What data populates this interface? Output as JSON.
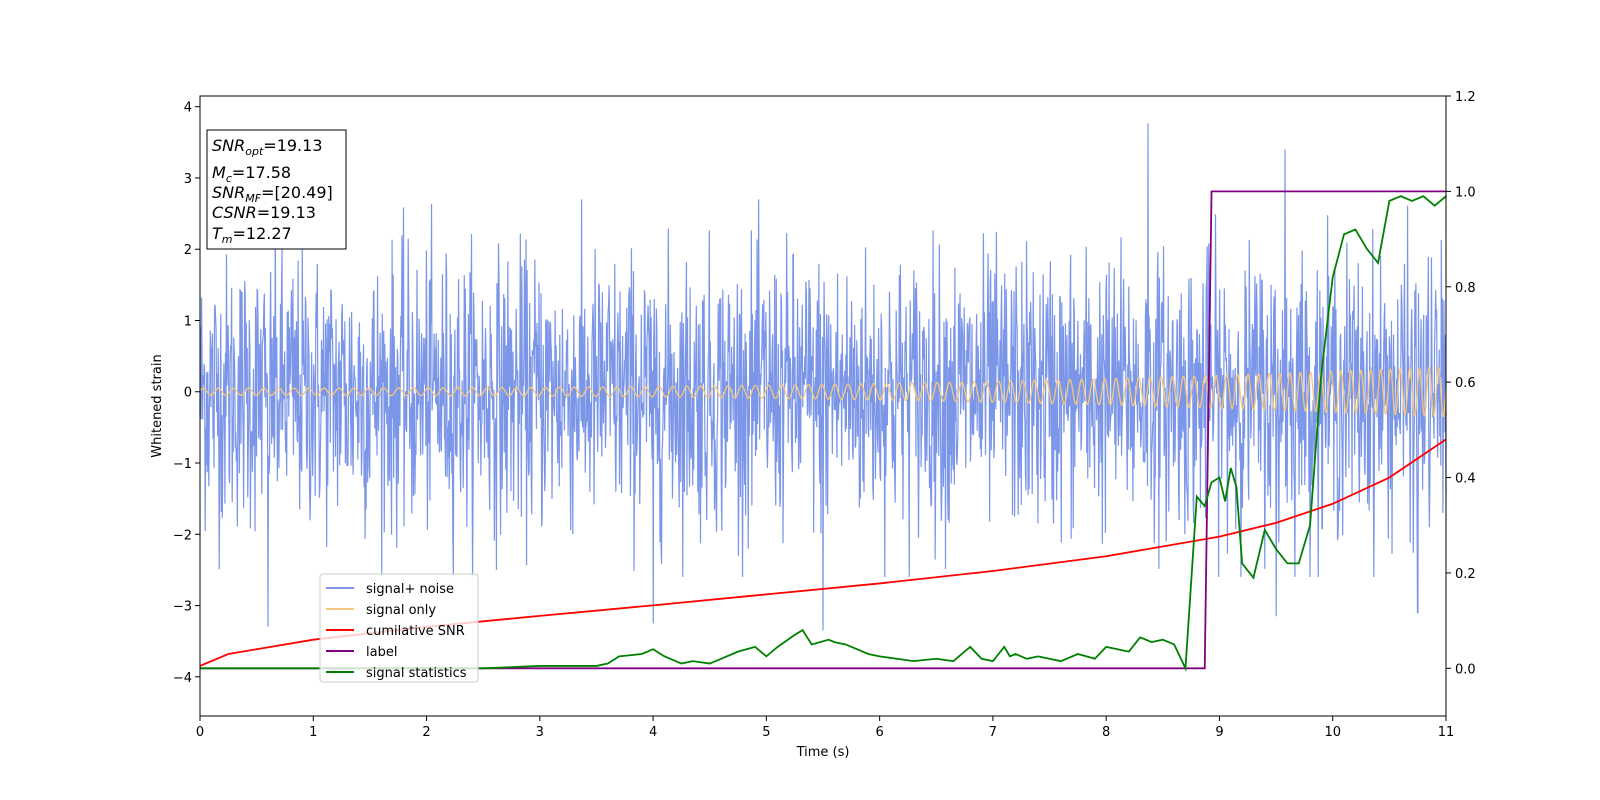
{
  "chart_data": {
    "type": "line",
    "xlabel": "Time (s)",
    "ylabel": "Whitened strain",
    "xlim": [
      0,
      11
    ],
    "ylim_left": [
      -4.55,
      4.15
    ],
    "ylim_right": [
      -0.1,
      1.2
    ],
    "x_ticks": [
      0,
      1,
      2,
      3,
      4,
      5,
      6,
      7,
      8,
      9,
      10,
      11
    ],
    "y_ticks_left": [
      -4,
      -3,
      -2,
      -1,
      0,
      1,
      2,
      3,
      4
    ],
    "y_ticks_right": [
      0.0,
      0.2,
      0.4,
      0.6,
      0.8,
      1.0,
      1.2
    ],
    "y_tick_labels_left": [
      "−4",
      "−3",
      "−2",
      "−1",
      "0",
      "1",
      "2",
      "3",
      "4"
    ],
    "y_tick_labels_right": [
      "0.0",
      "0.2",
      "0.4",
      "0.6",
      "0.8",
      "1.0",
      "1.2"
    ],
    "legend_position": "lower-left",
    "series": [
      {
        "name": "signal+ noise",
        "axis": "left",
        "color": "#7b96e8",
        "description": "white noise envelope roughly between -2.2 and 2.3 with occasional peaks up to 3.8 and down to -3.3",
        "envelope_low": -2.2,
        "envelope_high": 2.3,
        "spikes": [
          [
            0.6,
            -3.3
          ],
          [
            4.0,
            -3.25
          ],
          [
            5.5,
            -3.35
          ],
          [
            8.37,
            3.77
          ],
          [
            9.58,
            3.4
          ],
          [
            9.5,
            -3.15
          ],
          [
            10.75,
            -3.1
          ]
        ]
      },
      {
        "name": "signal only",
        "axis": "left",
        "color": "#f5c77e",
        "description": "chirp with amplitude rising from about 0.05 at t=0 to about 0.35 at t=11 and frequency rising over time",
        "amplitude_start": 0.05,
        "amplitude_end": 0.35
      },
      {
        "name": "cumilative SNR",
        "axis": "right",
        "color": "#ff0000",
        "x": [
          0,
          0.25,
          0.5,
          1,
          2,
          3,
          4,
          5,
          6,
          7,
          8,
          9,
          9.5,
          10,
          10.5,
          11
        ],
        "y": [
          0.005,
          0.03,
          0.04,
          0.06,
          0.087,
          0.11,
          0.132,
          0.155,
          0.178,
          0.204,
          0.235,
          0.276,
          0.305,
          0.345,
          0.4,
          0.48
        ]
      },
      {
        "name": "label",
        "axis": "right",
        "color": "#800080",
        "x": [
          0,
          8.87,
          8.93,
          11
        ],
        "y": [
          0,
          0,
          1,
          1
        ]
      },
      {
        "name": "signal statistics",
        "axis": "right",
        "color": "#008000",
        "x": [
          0,
          2.5,
          3.0,
          3.5,
          3.6,
          3.7,
          3.9,
          4.0,
          4.1,
          4.25,
          4.35,
          4.5,
          4.6,
          4.75,
          4.9,
          5.0,
          5.1,
          5.25,
          5.32,
          5.4,
          5.55,
          5.6,
          5.7,
          5.8,
          5.9,
          6.0,
          6.15,
          6.3,
          6.5,
          6.65,
          6.8,
          6.9,
          7.0,
          7.1,
          7.15,
          7.2,
          7.3,
          7.4,
          7.6,
          7.75,
          7.9,
          8.0,
          8.1,
          8.2,
          8.3,
          8.4,
          8.5,
          8.6,
          8.7,
          8.8,
          8.87,
          8.93,
          9.0,
          9.05,
          9.1,
          9.15,
          9.2,
          9.3,
          9.4,
          9.5,
          9.6,
          9.7,
          9.8,
          9.9,
          10.0,
          10.1,
          10.2,
          10.3,
          10.4,
          10.5,
          10.6,
          10.7,
          10.8,
          10.9,
          11.0
        ],
        "y": [
          0,
          0,
          0.005,
          0.005,
          0.01,
          0.025,
          0.03,
          0.04,
          0.025,
          0.01,
          0.015,
          0.01,
          0.02,
          0.035,
          0.045,
          0.025,
          0.045,
          0.07,
          0.08,
          0.05,
          0.06,
          0.055,
          0.05,
          0.04,
          0.03,
          0.025,
          0.02,
          0.015,
          0.02,
          0.015,
          0.045,
          0.02,
          0.015,
          0.045,
          0.025,
          0.03,
          0.02,
          0.025,
          0.015,
          0.03,
          0.02,
          0.045,
          0.04,
          0.035,
          0.065,
          0.055,
          0.06,
          0.05,
          0.0,
          0.36,
          0.34,
          0.39,
          0.4,
          0.35,
          0.42,
          0.38,
          0.22,
          0.19,
          0.29,
          0.25,
          0.22,
          0.22,
          0.3,
          0.62,
          0.82,
          0.91,
          0.92,
          0.88,
          0.85,
          0.98,
          0.99,
          0.98,
          0.99,
          0.97,
          0.99
        ]
      }
    ]
  },
  "info_box": {
    "snr_opt_symbol": "SNR",
    "snr_opt_subscript": "opt",
    "snr_opt_value": "=19.13",
    "mc_symbol": "M",
    "mc_subscript": "c",
    "mc_value": "=17.58",
    "snr_mf_symbol": "SNR",
    "snr_mf_subscript": "MF",
    "snr_mf_value": "=[20.49]",
    "csnr_symbol": "CSNR",
    "csnr_value": "=19.13",
    "tm_symbol": "T",
    "tm_subscript": "m",
    "tm_value": "=12.27"
  }
}
